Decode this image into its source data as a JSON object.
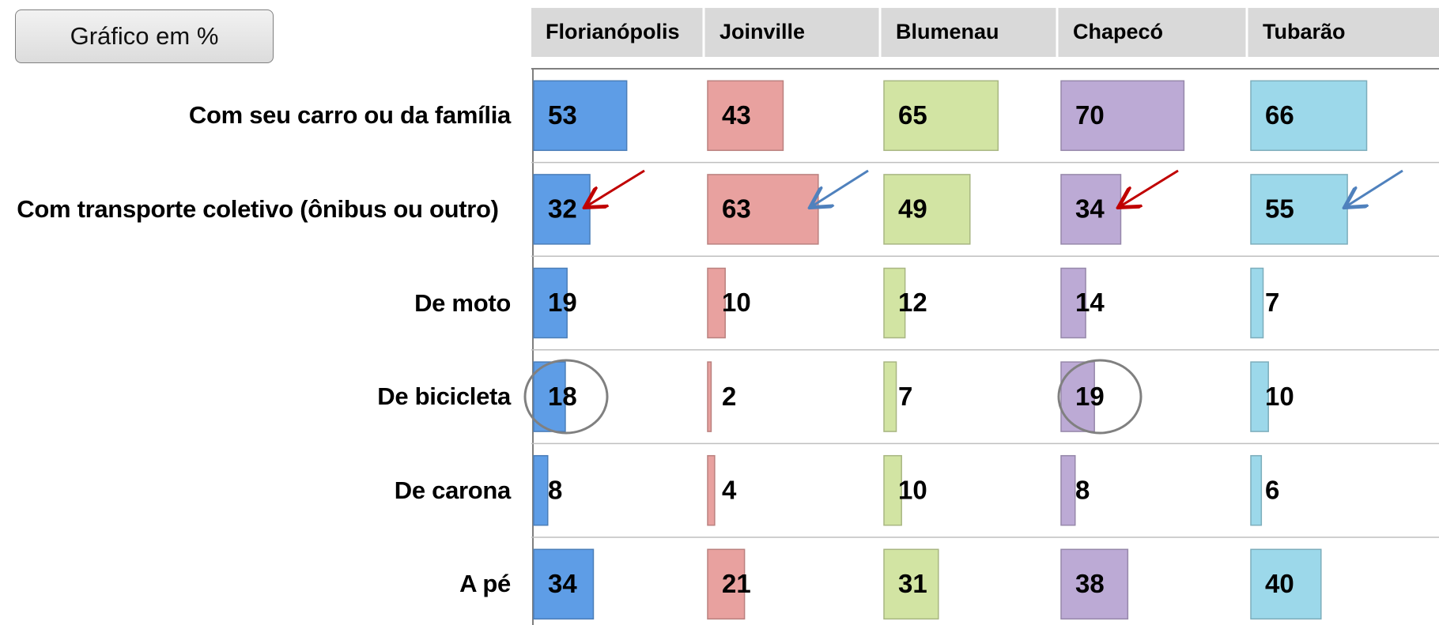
{
  "button": {
    "label": "Gráfico em %"
  },
  "chart_data": {
    "type": "bar",
    "categories": [
      "Com seu carro ou da família",
      "Com transporte coletivo (ônibus ou outro)",
      "De moto",
      "De bicicleta",
      "De carona",
      "A pé"
    ],
    "series": [
      {
        "name": "Florianópolis",
        "color": "#5e9de6",
        "values": [
          53,
          32,
          19,
          18,
          8,
          34
        ]
      },
      {
        "name": "Joinville",
        "color": "#e8a19f",
        "values": [
          43,
          63,
          10,
          2,
          4,
          21
        ]
      },
      {
        "name": "Blumenau",
        "color": "#d2e4a3",
        "values": [
          65,
          49,
          12,
          7,
          10,
          31
        ]
      },
      {
        "name": "Chapecó",
        "color": "#bcaad5",
        "values": [
          70,
          34,
          14,
          19,
          8,
          38
        ]
      },
      {
        "name": "Tubarão",
        "color": "#9cd8ea",
        "values": [
          66,
          55,
          7,
          10,
          6,
          40
        ]
      }
    ]
  }
}
